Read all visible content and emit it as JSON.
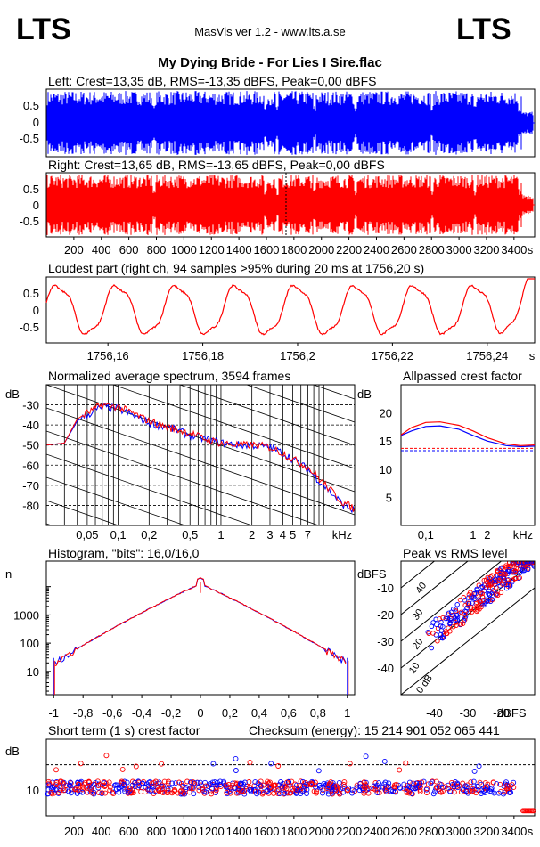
{
  "header": {
    "logo_left": "LTS",
    "logo_right": "LTS",
    "app_title": "MasVis ver 1.2 - www.lts.a.se",
    "file_title": "My Dying Bride - For Lies I Sire.flac"
  },
  "colors": {
    "left": "#0000ff",
    "right": "#ff0000",
    "grid": "#000000"
  },
  "chart_data": [
    {
      "type": "area",
      "title": "Left: Crest=13,35 dB, RMS=-13,35 dBFS, Peak=0,00 dBFS",
      "series": [
        {
          "name": "left"
        }
      ],
      "y_ticks": [
        "0.5",
        "0",
        "-0.5"
      ],
      "ylim": [
        -1,
        1
      ]
    },
    {
      "type": "area",
      "title": "Right: Crest=13,65 dB, RMS=-13,65 dBFS, Peak=0,00 dBFS",
      "series": [
        {
          "name": "right"
        }
      ],
      "y_ticks": [
        "0.5",
        "0",
        "-0.5"
      ],
      "x_ticks": [
        "200",
        "400",
        "600",
        "800",
        "1000",
        "1200",
        "1400",
        "1600",
        "1800",
        "2000",
        "2200",
        "2400",
        "2600",
        "2800",
        "3000",
        "3200",
        "3400"
      ],
      "x_unit": "s",
      "xlim": [
        0,
        3550
      ],
      "ylim": [
        -1,
        1
      ]
    },
    {
      "type": "line",
      "title": "Loudest part (right ch, 94 samples >95% during 20 ms at 1756,20 s)",
      "y_ticks": [
        "0.5",
        "0",
        "-0.5"
      ],
      "x_ticks": [
        "1756,16",
        "1756,18",
        "1756,2",
        "1756,22",
        "1756,24"
      ],
      "x_unit": "s",
      "xlim": [
        1756.147,
        1756.25
      ],
      "ylim": [
        -1,
        1
      ]
    },
    {
      "type": "line",
      "title": "Normalized average spectrum, 3594 frames",
      "ylabel": "dB",
      "y_ticks": [
        "-30",
        "-40",
        "-50",
        "-60",
        "-70",
        "-80"
      ],
      "x_ticks": [
        "0,05",
        "0,1",
        "0,2",
        "0,5",
        "1",
        "2",
        "3",
        "4",
        "5",
        "7"
      ],
      "x_unit": "kHz",
      "x_log": true,
      "xlim": [
        0.02,
        20
      ],
      "ylim": [
        -90,
        -20
      ],
      "x": [
        0.02,
        0.03,
        0.04,
        0.05,
        0.07,
        0.1,
        0.15,
        0.2,
        0.3,
        0.5,
        0.7,
        1,
        1.5,
        2,
        3,
        4,
        5,
        7,
        10,
        15,
        20
      ],
      "series": [
        {
          "values": [
            -50,
            -49,
            -38,
            -35,
            -31,
            -32,
            -36,
            -39,
            -41,
            -45,
            -47,
            -49,
            -50,
            -50,
            -51,
            -54,
            -57,
            -62,
            -70,
            -79,
            -83
          ]
        },
        {
          "values": [
            -50,
            -49,
            -37,
            -34,
            -30,
            -31,
            -35,
            -38,
            -41,
            -44,
            -47,
            -49,
            -50,
            -50,
            -51,
            -54,
            -57,
            -61,
            -69,
            -78,
            -82
          ]
        }
      ]
    },
    {
      "type": "line",
      "title": "Allpassed crest factor",
      "ylabel": "dB",
      "y_ticks": [
        "20",
        "15",
        "10",
        "5"
      ],
      "x_ticks": [
        "0,1",
        "1",
        "2"
      ],
      "x_unit": "kHz",
      "x_log": true,
      "xlim": [
        0.03,
        20
      ],
      "ylim": [
        0,
        25
      ],
      "x": [
        0.03,
        0.05,
        0.1,
        0.2,
        0.5,
        1,
        2,
        5,
        10,
        20
      ],
      "series": [
        {
          "values": [
            16.0,
            16.8,
            17.6,
            17.7,
            17.1,
            16.0,
            15.0,
            14.2,
            14.0,
            14.1
          ]
        },
        {
          "values": [
            16.1,
            17.4,
            18.3,
            18.4,
            17.8,
            16.8,
            15.6,
            14.5,
            14.2,
            14.3
          ]
        }
      ],
      "reference_lines": [
        13.3,
        13.7
      ]
    },
    {
      "type": "line",
      "title": "Histogram, \"bits\": 16,0/16,0",
      "ylabel": "n",
      "y_ticks": [
        "1000",
        "100",
        "10"
      ],
      "x_ticks": [
        "-1",
        "-0,8",
        "-0,6",
        "-0,4",
        "-0,2",
        "0",
        "0,2",
        "0,4",
        "0,6",
        "0,8",
        "1"
      ],
      "y_log": true,
      "xlim": [
        -1.05,
        1.05
      ],
      "ylim": [
        1.5,
        80000
      ]
    },
    {
      "type": "scatter",
      "title": "Peak vs RMS level",
      "ylabel": "dBFS",
      "xlabel": "dBFS",
      "y_ticks": [
        "-10",
        "-20",
        "-30",
        "-40"
      ],
      "x_ticks": [
        "-40",
        "-30",
        "-20"
      ],
      "diagonal_labels": [
        "40",
        "30",
        "20",
        "10",
        "0 dB"
      ],
      "xlim": [
        -50,
        -10
      ],
      "ylim": [
        -50,
        0
      ]
    },
    {
      "type": "scatter",
      "title": "Short term (1 s) crest factor",
      "annotation": "Checksum (energy):  15 214 901 052 065 441",
      "ylabel": "dB",
      "y_ticks": [
        "10"
      ],
      "x_ticks": [
        "200",
        "400",
        "600",
        "800",
        "1000",
        "1200",
        "1400",
        "1600",
        "1800",
        "2000",
        "2200",
        "2400",
        "2600",
        "2800",
        "3000",
        "3200",
        "3400"
      ],
      "x_unit": "s",
      "xlim": [
        0,
        3550
      ],
      "ylim": [
        0,
        30
      ],
      "reference_line": 20
    }
  ]
}
